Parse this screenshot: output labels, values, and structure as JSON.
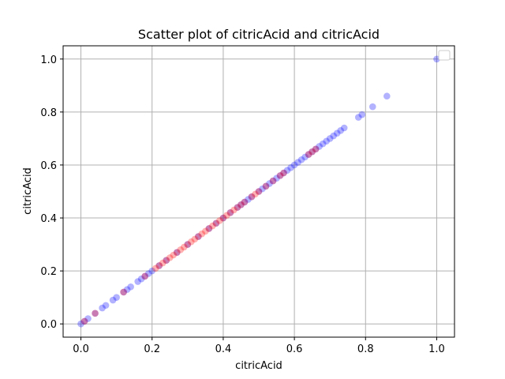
{
  "chart_data": {
    "type": "scatter",
    "title": "Scatter plot of citricAcid and citricAcid",
    "xlabel": "citricAcid",
    "ylabel": "citricAcid",
    "xlim": [
      -0.05,
      1.05
    ],
    "ylim": [
      -0.05,
      1.05
    ],
    "xticks": [
      0.0,
      0.2,
      0.4,
      0.6,
      0.8,
      1.0
    ],
    "yticks": [
      0.0,
      0.2,
      0.4,
      0.6,
      0.8,
      1.0
    ],
    "xtick_labels": [
      "0.0",
      "0.2",
      "0.4",
      "0.6",
      "0.8",
      "1.0"
    ],
    "ytick_labels": [
      "0.0",
      "0.2",
      "0.4",
      "0.6",
      "0.8",
      "1.0"
    ],
    "grid": true,
    "legend_position": "upper right",
    "marker_alpha": 0.3,
    "colors": {
      "blue": "#0000ff",
      "red": "#ff0000",
      "grid": "#b0b0b0"
    },
    "series": [
      {
        "color": "#0000ff",
        "x": [
          0.0,
          0.01,
          0.02,
          0.04,
          0.06,
          0.07,
          0.09,
          0.1,
          0.12,
          0.13,
          0.14,
          0.16,
          0.17,
          0.18,
          0.19,
          0.2,
          0.22,
          0.24,
          0.27,
          0.3,
          0.33,
          0.36,
          0.38,
          0.4,
          0.42,
          0.44,
          0.45,
          0.46,
          0.47,
          0.48,
          0.5,
          0.51,
          0.52,
          0.53,
          0.54,
          0.55,
          0.56,
          0.57,
          0.58,
          0.59,
          0.6,
          0.61,
          0.62,
          0.63,
          0.64,
          0.65,
          0.66,
          0.67,
          0.68,
          0.69,
          0.7,
          0.71,
          0.72,
          0.73,
          0.74,
          0.78,
          0.79,
          0.82,
          0.86,
          1.0
        ],
        "y": [
          0.0,
          0.01,
          0.02,
          0.04,
          0.06,
          0.07,
          0.09,
          0.1,
          0.12,
          0.13,
          0.14,
          0.16,
          0.17,
          0.18,
          0.19,
          0.2,
          0.22,
          0.24,
          0.27,
          0.3,
          0.33,
          0.36,
          0.38,
          0.4,
          0.42,
          0.44,
          0.45,
          0.46,
          0.47,
          0.48,
          0.5,
          0.51,
          0.52,
          0.53,
          0.54,
          0.55,
          0.56,
          0.57,
          0.58,
          0.59,
          0.6,
          0.61,
          0.62,
          0.63,
          0.64,
          0.65,
          0.66,
          0.67,
          0.68,
          0.69,
          0.7,
          0.71,
          0.72,
          0.73,
          0.74,
          0.78,
          0.79,
          0.82,
          0.86,
          1.0
        ]
      },
      {
        "color": "#ff0000",
        "x": [
          0.01,
          0.04,
          0.12,
          0.18,
          0.21,
          0.22,
          0.23,
          0.24,
          0.25,
          0.26,
          0.27,
          0.28,
          0.29,
          0.3,
          0.31,
          0.32,
          0.33,
          0.34,
          0.35,
          0.36,
          0.37,
          0.38,
          0.39,
          0.4,
          0.41,
          0.42,
          0.43,
          0.44,
          0.45,
          0.46,
          0.48,
          0.49,
          0.5,
          0.52,
          0.54,
          0.56,
          0.57,
          0.64,
          0.65,
          0.66
        ],
        "y": [
          0.01,
          0.04,
          0.12,
          0.18,
          0.21,
          0.22,
          0.23,
          0.24,
          0.25,
          0.26,
          0.27,
          0.28,
          0.29,
          0.3,
          0.31,
          0.32,
          0.33,
          0.34,
          0.35,
          0.36,
          0.37,
          0.38,
          0.39,
          0.4,
          0.41,
          0.42,
          0.43,
          0.44,
          0.45,
          0.46,
          0.48,
          0.49,
          0.5,
          0.52,
          0.54,
          0.56,
          0.57,
          0.64,
          0.65,
          0.66
        ]
      }
    ]
  }
}
